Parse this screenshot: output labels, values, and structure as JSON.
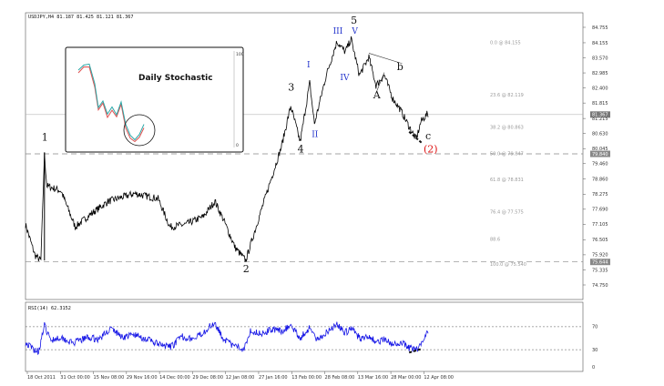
{
  "symbol_header": "USDJPY,H4  81.187 81.425 81.121 81.367",
  "inset_title": "Daily Stochastic",
  "inset_scale": {
    "top": "100",
    "bottom": "0"
  },
  "rsi_label": "RSI(14) 62.3152",
  "rsi_levels": [
    "70",
    "30",
    "0"
  ],
  "colors": {
    "price": "#000000",
    "rsi": "#1414e6",
    "current_price_box": "#777777",
    "wave_main": "#111111",
    "wave_sub": "#2233cc",
    "wave_target": "#dd1111",
    "stoch_fast": "#2aa8a8",
    "stoch_slow": "#e05050"
  },
  "chart_data": [
    {
      "type": "line",
      "name": "price",
      "x_labels": [
        "18 Oct 2011",
        "31 Oct 00:00",
        "15 Nov 08:00",
        "29 Nov 16:00",
        "14 Dec 00:00",
        "29 Dec 08:00",
        "12 Jan 08:00",
        "27 Jan 16:00",
        "13 Feb 00:00",
        "28 Feb 08:00",
        "13 Mar 16:00",
        "28 Mar 00:00",
        "12 Apr 08:00"
      ],
      "y_ticks": [
        "84.755",
        "84.155",
        "83.570",
        "82.985",
        "82.400",
        "81.815",
        "81.215",
        "80.630",
        "80.045",
        "79.460",
        "78.860",
        "78.275",
        "77.690",
        "77.105",
        "76.505",
        "75.920",
        "75.335",
        "74.750"
      ],
      "ylim": [
        74.75,
        84.755
      ],
      "current_price": "81.367",
      "level_box": "79.840",
      "low_box": "75.644",
      "anchors": [
        {
          "x": 0,
          "y": 77.1
        },
        {
          "x": 4,
          "y": 76.5
        },
        {
          "x": 8,
          "y": 75.9
        },
        {
          "x": 13,
          "y": 75.7
        },
        {
          "x": 16,
          "y": 79.8
        },
        {
          "x": 18,
          "y": 78.6
        },
        {
          "x": 30,
          "y": 78.4
        },
        {
          "x": 42,
          "y": 77.0
        },
        {
          "x": 55,
          "y": 77.5
        },
        {
          "x": 70,
          "y": 78.0
        },
        {
          "x": 92,
          "y": 78.3
        },
        {
          "x": 112,
          "y": 78.1
        },
        {
          "x": 122,
          "y": 77.0
        },
        {
          "x": 135,
          "y": 77.1
        },
        {
          "x": 150,
          "y": 77.4
        },
        {
          "x": 160,
          "y": 78.0
        },
        {
          "x": 168,
          "y": 77.2
        },
        {
          "x": 177,
          "y": 76.2
        },
        {
          "x": 186,
          "y": 75.7
        },
        {
          "x": 196,
          "y": 77.2
        },
        {
          "x": 207,
          "y": 78.8
        },
        {
          "x": 216,
          "y": 80.1
        },
        {
          "x": 224,
          "y": 81.7
        },
        {
          "x": 232,
          "y": 80.3
        },
        {
          "x": 240,
          "y": 82.6
        },
        {
          "x": 244,
          "y": 81.0
        },
        {
          "x": 254,
          "y": 82.9
        },
        {
          "x": 263,
          "y": 84.2
        },
        {
          "x": 270,
          "y": 83.8
        },
        {
          "x": 275,
          "y": 84.3
        },
        {
          "x": 282,
          "y": 82.9
        },
        {
          "x": 290,
          "y": 83.6
        },
        {
          "x": 296,
          "y": 82.5
        },
        {
          "x": 303,
          "y": 82.9
        },
        {
          "x": 310,
          "y": 82.0
        },
        {
          "x": 316,
          "y": 81.6
        },
        {
          "x": 324,
          "y": 80.9
        },
        {
          "x": 330,
          "y": 80.4
        },
        {
          "x": 334,
          "y": 81.1
        },
        {
          "x": 339,
          "y": 81.37
        }
      ],
      "fib_levels": [
        {
          "label": "0.0 @ 84.155",
          "value": 84.155
        },
        {
          "label": "23.6 @ 82.119",
          "value": 82.119
        },
        {
          "label": "38.2 @ 80.863",
          "value": 80.863
        },
        {
          "label": "50.0 @ 79.847",
          "value": 79.847
        },
        {
          "label": "61.8 @ 78.831",
          "value": 78.831
        },
        {
          "label": "76.4 @ 77.575",
          "value": 77.575
        },
        {
          "label": "88.6",
          "value": 76.52
        },
        {
          "label": "100.0 @ 75.540",
          "value": 75.54
        }
      ],
      "wave_labels_main": [
        {
          "text": "1",
          "x": 16,
          "y": 80.35
        },
        {
          "text": "2",
          "x": 186,
          "y": 75.25
        },
        {
          "text": "3",
          "x": 224,
          "y": 82.3
        },
        {
          "text": "4",
          "x": 232,
          "y": 79.9
        },
        {
          "text": "5",
          "x": 277,
          "y": 84.9
        },
        {
          "text": "A",
          "x": 296,
          "y": 82.0
        },
        {
          "text": "b",
          "x": 316,
          "y": 83.1
        },
        {
          "text": "c",
          "x": 340,
          "y": 80.4
        }
      ],
      "wave_labels_sub": [
        {
          "text": "III",
          "x": 262,
          "y": 84.5
        },
        {
          "text": "V",
          "x": 278,
          "y": 84.5
        },
        {
          "text": "I",
          "x": 240,
          "y": 83.2
        },
        {
          "text": "II",
          "x": 244,
          "y": 80.5
        },
        {
          "text": "IV",
          "x": 268,
          "y": 82.7
        }
      ],
      "wave_target_label": {
        "text": "(2)",
        "x": 340,
        "y": 79.9
      }
    },
    {
      "type": "line",
      "name": "RSI(14)",
      "ylim": [
        0,
        100
      ],
      "levels": [
        70,
        30
      ],
      "anchors": [
        {
          "x": 0,
          "y": 42
        },
        {
          "x": 6,
          "y": 32
        },
        {
          "x": 11,
          "y": 27
        },
        {
          "x": 16,
          "y": 72
        },
        {
          "x": 21,
          "y": 47
        },
        {
          "x": 30,
          "y": 52
        },
        {
          "x": 40,
          "y": 41
        },
        {
          "x": 52,
          "y": 51
        },
        {
          "x": 62,
          "y": 48
        },
        {
          "x": 72,
          "y": 67
        },
        {
          "x": 82,
          "y": 52
        },
        {
          "x": 92,
          "y": 56
        },
        {
          "x": 105,
          "y": 46
        },
        {
          "x": 115,
          "y": 37
        },
        {
          "x": 123,
          "y": 35
        },
        {
          "x": 132,
          "y": 53
        },
        {
          "x": 143,
          "y": 48
        },
        {
          "x": 152,
          "y": 64
        },
        {
          "x": 160,
          "y": 78
        },
        {
          "x": 166,
          "y": 52
        },
        {
          "x": 174,
          "y": 38
        },
        {
          "x": 184,
          "y": 31
        },
        {
          "x": 190,
          "y": 63
        },
        {
          "x": 200,
          "y": 58
        },
        {
          "x": 208,
          "y": 66
        },
        {
          "x": 216,
          "y": 62
        },
        {
          "x": 224,
          "y": 72
        },
        {
          "x": 232,
          "y": 50
        },
        {
          "x": 240,
          "y": 69
        },
        {
          "x": 246,
          "y": 46
        },
        {
          "x": 256,
          "y": 64
        },
        {
          "x": 263,
          "y": 74
        },
        {
          "x": 270,
          "y": 60
        },
        {
          "x": 276,
          "y": 67
        },
        {
          "x": 282,
          "y": 50
        },
        {
          "x": 290,
          "y": 55
        },
        {
          "x": 296,
          "y": 42
        },
        {
          "x": 303,
          "y": 48
        },
        {
          "x": 310,
          "y": 38
        },
        {
          "x": 318,
          "y": 42
        },
        {
          "x": 324,
          "y": 33
        },
        {
          "x": 330,
          "y": 30
        },
        {
          "x": 334,
          "y": 40
        },
        {
          "x": 339,
          "y": 62
        }
      ]
    }
  ]
}
